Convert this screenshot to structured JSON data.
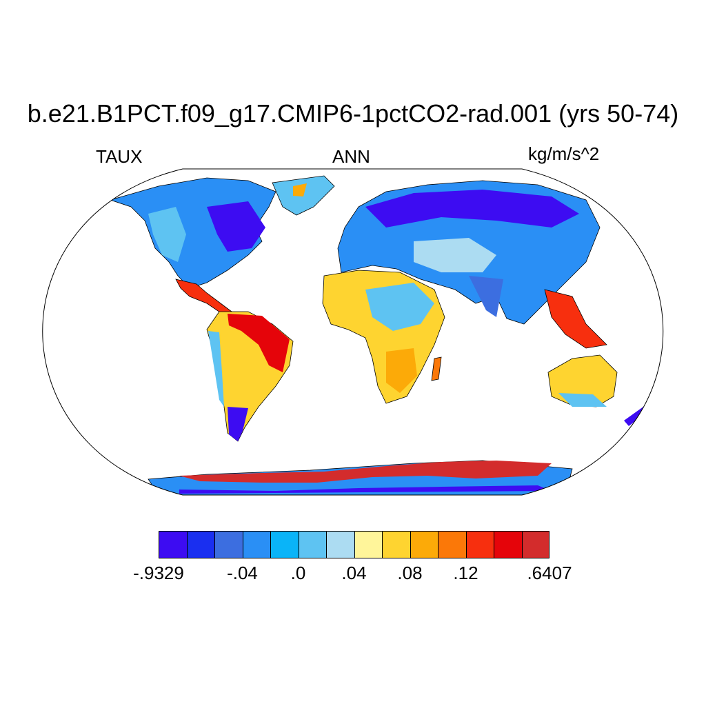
{
  "title": "b.e21.B1PCT.f09_g17.CMIP6-1pctCO2-rad.001 (yrs 50-74)",
  "left_label": "TAUX",
  "center_label": "ANN",
  "right_label": "kg/m/s^2",
  "colorbar": {
    "colors": [
      "#3d0cf2",
      "#1a2ff0",
      "#3c6ee0",
      "#2a8ff5",
      "#0ab4f8",
      "#5ec3f2",
      "#acdcf2",
      "#fff59a",
      "#fed430",
      "#fcaa08",
      "#fb7808",
      "#f72f0e",
      "#e5040a",
      "#d32c2c"
    ],
    "labels": [
      {
        "text": "-.9329",
        "boundary": 0
      },
      {
        "text": "-.04",
        "boundary": 3
      },
      {
        "text": ".0",
        "boundary": 5
      },
      {
        "text": ".04",
        "boundary": 7
      },
      {
        "text": ".08",
        "boundary": 9
      },
      {
        "text": ".12",
        "boundary": 11
      },
      {
        "text": ".6407",
        "boundary": 14
      }
    ]
  }
}
